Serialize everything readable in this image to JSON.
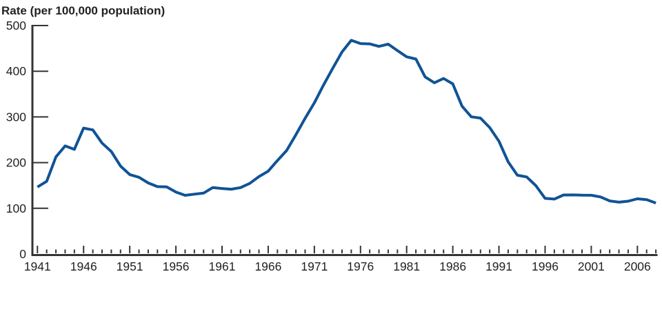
{
  "chart_data": {
    "type": "line",
    "title": "Rate (per 100,000 population)",
    "xlabel": "",
    "ylabel": "Rate (per 100,000 population)",
    "x_start_year": 1941,
    "x_end_year": 2008,
    "years": [
      1941,
      1942,
      1943,
      1944,
      1945,
      1946,
      1947,
      1948,
      1949,
      1950,
      1951,
      1952,
      1953,
      1954,
      1955,
      1956,
      1957,
      1958,
      1959,
      1960,
      1961,
      1962,
      1963,
      1964,
      1965,
      1966,
      1967,
      1968,
      1969,
      1970,
      1971,
      1972,
      1973,
      1974,
      1975,
      1976,
      1977,
      1978,
      1979,
      1980,
      1981,
      1982,
      1983,
      1984,
      1985,
      1986,
      1987,
      1988,
      1989,
      1990,
      1991,
      1992,
      1993,
      1994,
      1995,
      1996,
      1997,
      1998,
      1999,
      2000,
      2001,
      2002,
      2003,
      2004,
      2005,
      2006,
      2007,
      2008
    ],
    "series": [
      {
        "name": "Rate per 100,000 population",
        "values": [
          146.7,
          159.0,
          212.6,
          236.5,
          229.0,
          275.6,
          271.6,
          242.7,
          224.3,
          192.5,
          173.8,
          168.0,
          155.6,
          147.4,
          146.9,
          135.7,
          128.4,
          131.0,
          133.3,
          145.4,
          143.3,
          141.9,
          145.3,
          154.5,
          169.4,
          181.2,
          204.5,
          226.6,
          261.1,
          297.2,
          331.0,
          370.0,
          406.6,
          442.1,
          467.7,
          460.6,
          459.8,
          454.4,
          459.4,
          445.1,
          431.5,
          426.8,
          387.6,
          374.8,
          384.2,
          372.3,
          323.5,
          300.3,
          297.4,
          276.6,
          247.0,
          201.6,
          172.4,
          168.7,
          149.5,
          121.8,
          120.2,
          129.2,
          129.3,
          128.7,
          128.5,
          125.0,
          116.2,
          113.5,
          115.6,
          120.9,
          118.9,
          111.6
        ]
      }
    ],
    "ylim": [
      0,
      500
    ],
    "y_ticks": [
      0,
      100,
      200,
      300,
      400,
      500
    ],
    "x_tick_labels": [
      "1941",
      "1946",
      "1951",
      "1956",
      "1961",
      "1966",
      "1971",
      "1976",
      "1981",
      "1986",
      "1991",
      "1996",
      "2001",
      "2006"
    ],
    "x_minor_ticks_every_year": true,
    "x_major_tick_interval_years": 5,
    "grid": false,
    "legend_position": "none",
    "colors": {
      "line": "#105396",
      "axis": "#363233",
      "text": "#231f20",
      "background": "#ffffff"
    }
  }
}
